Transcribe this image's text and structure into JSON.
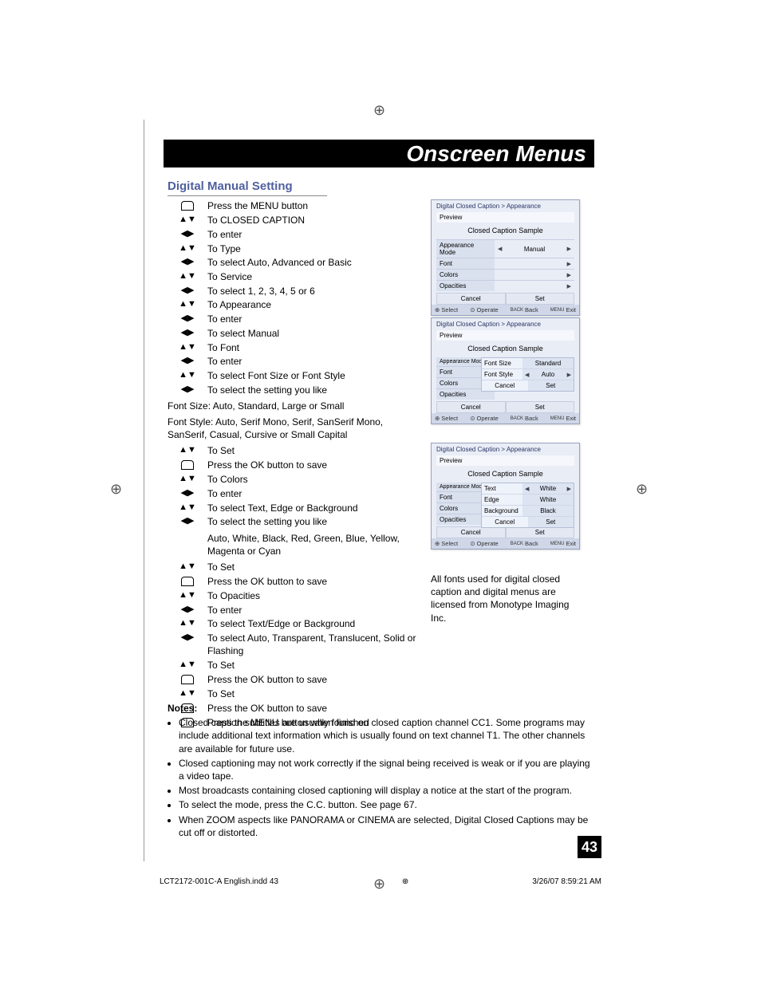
{
  "page": {
    "title": "Onscreen Menus",
    "section": "Digital Manual Setting",
    "page_number": "43",
    "footer_file": "LCT2172-001C-A English.indd   43",
    "footer_date": "3/26/07  8:59:21 AM"
  },
  "steps": [
    {
      "icon": "menu",
      "text": "Press the MENU button"
    },
    {
      "icon": "ud",
      "text": "To CLOSED CAPTION"
    },
    {
      "icon": "lr",
      "text": "To enter"
    },
    {
      "icon": "ud",
      "text": "To Type"
    },
    {
      "icon": "lr",
      "text": "To select Auto, Advanced or Basic"
    },
    {
      "icon": "ud",
      "text": "To Service"
    },
    {
      "icon": "lr",
      "text": "To select 1, 2, 3, 4, 5 or 6"
    },
    {
      "icon": "ud",
      "text": "To Appearance"
    },
    {
      "icon": "lr",
      "text": "To enter"
    },
    {
      "icon": "lr",
      "text": "To select Manual"
    },
    {
      "icon": "ud",
      "text": "To Font"
    },
    {
      "icon": "lr",
      "text": "To enter"
    },
    {
      "icon": "ud",
      "text": "To select Font Size or Font Style"
    },
    {
      "icon": "lr",
      "text": "To select the setting you like"
    }
  ],
  "font_size_note": "Font Size: Auto, Standard, Large or Small",
  "font_style_note": "Font Style: Auto, Serif Mono, Serif, SanSerif Mono, SanSerif, Casual, Cursive or Small Capital",
  "steps2": [
    {
      "icon": "ud",
      "text": "To Set"
    },
    {
      "icon": "menu",
      "text": "Press the OK button to save"
    },
    {
      "icon": "ud",
      "text": "To Colors"
    },
    {
      "icon": "lr",
      "text": "To enter"
    },
    {
      "icon": "ud",
      "text": "To select Text, Edge or Background"
    },
    {
      "icon": "lr",
      "text": "To select the setting you like"
    }
  ],
  "colors_note": "Auto, White, Black, Red, Green, Blue, Yellow, Magenta or Cyan",
  "steps3": [
    {
      "icon": "ud",
      "text": "To Set"
    },
    {
      "icon": "menu",
      "text": "Press the OK button to save"
    },
    {
      "icon": "ud",
      "text": "To Opacities"
    },
    {
      "icon": "lr",
      "text": "To enter"
    },
    {
      "icon": "ud",
      "text": "To select Text/Edge or Background"
    },
    {
      "icon": "lr",
      "text": "To select Auto, Transparent, Translucent, Solid or Flashing"
    },
    {
      "icon": "ud",
      "text": "To Set"
    },
    {
      "icon": "menu",
      "text": "Press the OK button to save"
    },
    {
      "icon": "ud",
      "text": "To Set"
    },
    {
      "icon": "menu",
      "text": "Press the OK button to save"
    },
    {
      "icon": "menu",
      "text": "Press the MENU button when finished"
    }
  ],
  "osd_common": {
    "breadcrumb": "Digital Closed Caption  >  Appearance",
    "preview": "Preview",
    "sample": "Closed Caption Sample",
    "appearance_mode": "Appearance Mode",
    "font": "Font",
    "colors": "Colors",
    "opacities": "Opacities",
    "cancel": "Cancel",
    "set": "Set",
    "select": "Select",
    "operate": "Operate",
    "back": "Back",
    "exit": "Exit",
    "back_small": "BACK",
    "menu_small": "MENU"
  },
  "osd1": {
    "mode_value": "Manual"
  },
  "osd2": {
    "font_size": "Font Size",
    "font_size_value": "Standard",
    "font_style": "Font Style",
    "font_style_value": "Auto"
  },
  "osd3": {
    "text": "Text",
    "text_value": "White",
    "edge": "Edge",
    "edge_value": "White",
    "background": "Background",
    "background_value": "Black"
  },
  "font_license": "All fonts used for digital closed caption and digital menus are licensed from Monotype Imaging Inc.",
  "notes": {
    "title": "Notes:",
    "items": [
      "Closed caption subtitles are usually found on closed caption channel CC1. Some programs may include additional text information which is usually found on text channel T1. The other channels are available for future use.",
      "Closed captioning may not work correctly if the signal being received is weak or if you are playing a video tape.",
      "Most broadcasts containing closed captioning will display a notice at the start of the program.",
      "To select the mode, press the C.C. button. See page 67.",
      "When ZOOM aspects like PANORAMA or CINEMA are selected, Digital Closed Captions may be cut off or distorted."
    ]
  },
  "colors": {
    "title_color": "#5060a0",
    "osd_bg": "#e9edf6",
    "osd_border": "#96a2bd",
    "osd_row_bg": "#d9e0ee"
  }
}
